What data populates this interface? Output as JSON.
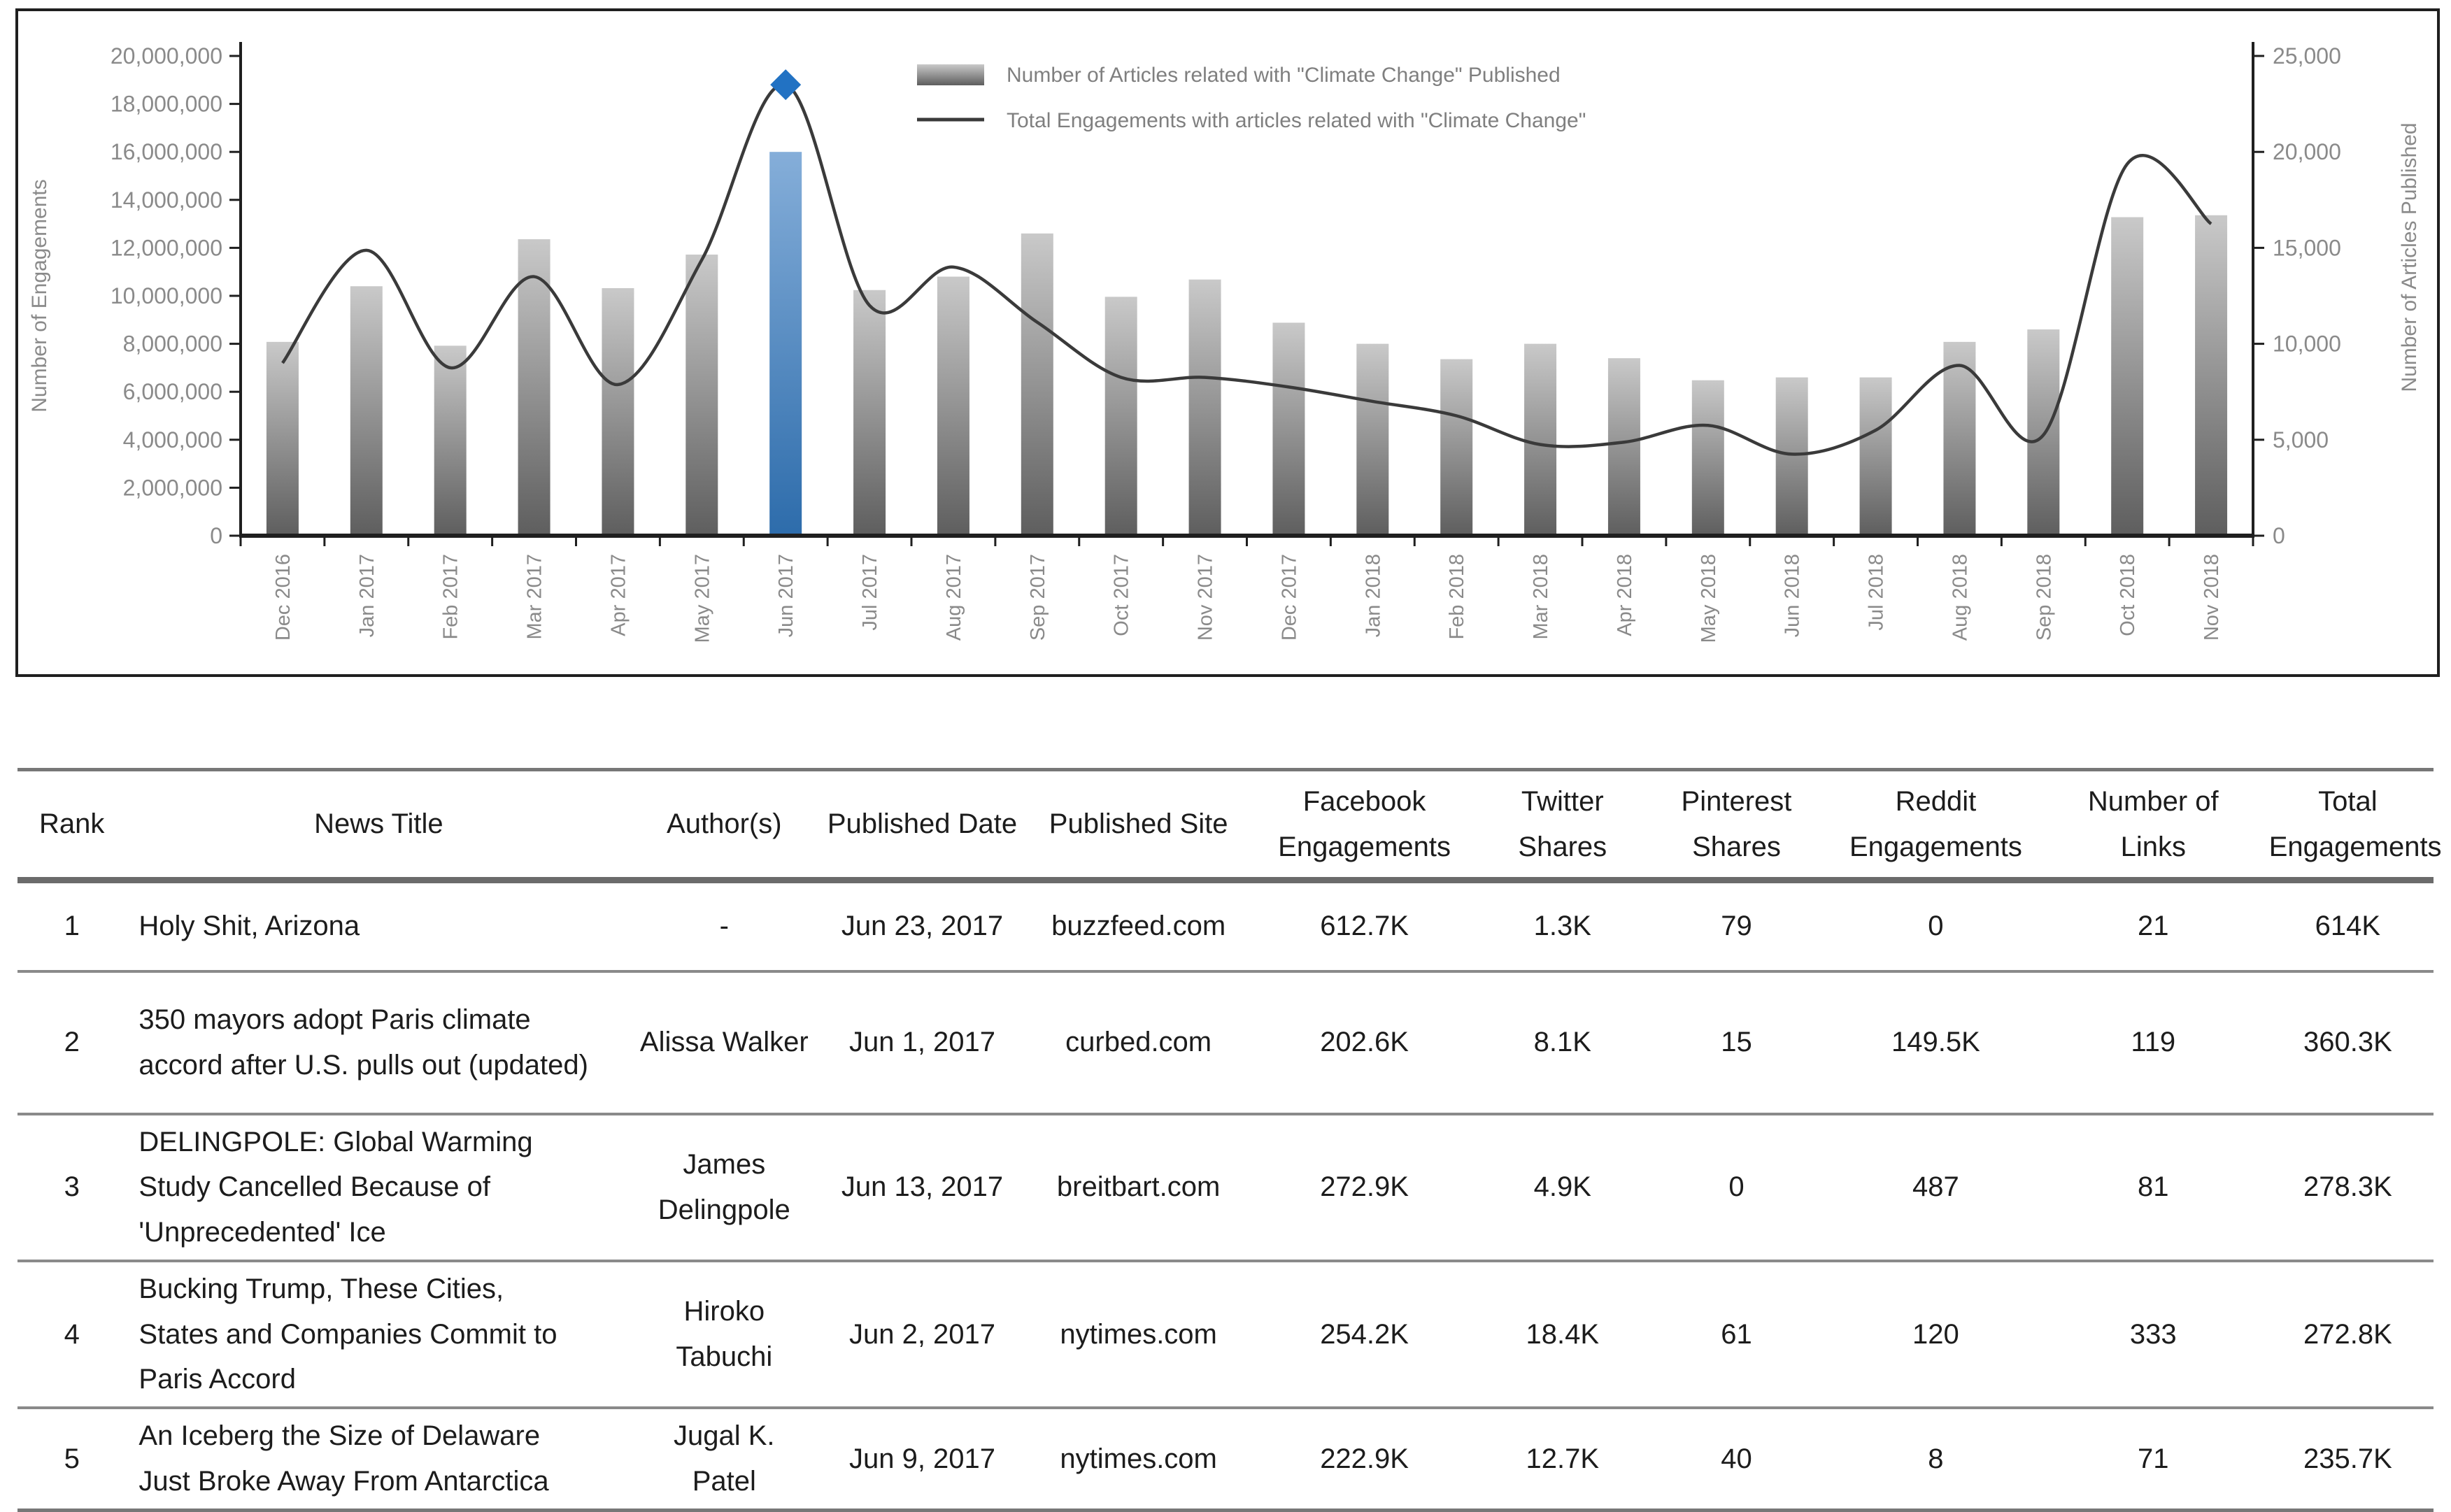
{
  "chart_data": {
    "type": "bar+line",
    "title": "",
    "categories": [
      "Dec 2016",
      "Jan 2017",
      "Feb 2017",
      "Mar 2017",
      "Apr 2017",
      "May 2017",
      "Jun 2017",
      "Jul 2017",
      "Aug 2017",
      "Sep 2017",
      "Oct 2017",
      "Nov 2017",
      "Dec 2017",
      "Jan 2018",
      "Feb 2018",
      "Mar 2018",
      "Apr 2018",
      "May 2018",
      "Jun 2018",
      "Jul 2018",
      "Aug 2018",
      "Sep 2018",
      "Oct 2018",
      "Nov 2018"
    ],
    "series": [
      {
        "name": "Number of Articles related with \"Climate Change\" Published",
        "type": "bar",
        "axis": "right",
        "values": [
          10100,
          13000,
          9900,
          15450,
          12900,
          14650,
          20000,
          12800,
          13500,
          15750,
          12450,
          13350,
          11100,
          10000,
          9200,
          10000,
          9250,
          8100,
          8250,
          8250,
          10100,
          10750,
          16600,
          16700
        ]
      },
      {
        "name": "Total Engagements with articles related with \"Climate Change\"",
        "type": "line",
        "axis": "left",
        "values": [
          7200000,
          11900000,
          7000000,
          10800000,
          6300000,
          11500000,
          18800000,
          9600000,
          11200000,
          8900000,
          6600000,
          6600000,
          6200000,
          5600000,
          5000000,
          3800000,
          3900000,
          4600000,
          3400000,
          4400000,
          7100000,
          4200000,
          15500000,
          13000000
        ]
      }
    ],
    "left_axis": {
      "title": "Number of Engagements",
      "min": 0,
      "max": 20000000,
      "step": 2000000
    },
    "right_axis": {
      "title": "Number of Articles  Published",
      "min": 0,
      "max": 25000,
      "step": 5000
    },
    "highlight": {
      "category": "Jun 2017",
      "index": 6,
      "marker_value": 18800000
    },
    "legend_position": "top-center",
    "grid": false,
    "colors": {
      "bar_top": "#c9c9c9",
      "bar_bottom": "#5e5e5e",
      "highlight_bar_top": "#85aed9",
      "highlight_bar_bottom": "#2d6cab",
      "line": "#3a3a3a",
      "marker": "#2272c3",
      "axis": "#1f1f1f",
      "tick_text": "#8a8a8a",
      "legend_text": "#7f7f7f"
    }
  },
  "table": {
    "columns": [
      {
        "key": "rank",
        "label": "Rank"
      },
      {
        "key": "title",
        "label": "News Title"
      },
      {
        "key": "authors",
        "label": "Author(s)"
      },
      {
        "key": "date",
        "label": "Published Date"
      },
      {
        "key": "site",
        "label": "Published Site"
      },
      {
        "key": "facebook",
        "label": "Facebook Engagements"
      },
      {
        "key": "twitter",
        "label": "Twitter Shares"
      },
      {
        "key": "pinterest",
        "label": "Pinterest Shares"
      },
      {
        "key": "reddit",
        "label": "Reddit Engagements"
      },
      {
        "key": "links",
        "label": "Number of Links"
      },
      {
        "key": "total",
        "label": "Total Engagements"
      }
    ],
    "rows": [
      {
        "rank": "1",
        "title": "Holy Shit, Arizona",
        "authors": "-",
        "date": "Jun 23, 2017",
        "site": "buzzfeed.com",
        "facebook": "612.7K",
        "twitter": "1.3K",
        "pinterest": "79",
        "reddit": "0",
        "links": "21",
        "total": "614K"
      },
      {
        "rank": "2",
        "title": "350 mayors adopt Paris climate accord after U.S. pulls out (updated)",
        "authors": "Alissa Walker",
        "date": "Jun 1, 2017",
        "site": "curbed.com",
        "facebook": "202.6K",
        "twitter": "8.1K",
        "pinterest": "15",
        "reddit": "149.5K",
        "links": "119",
        "total": "360.3K"
      },
      {
        "rank": "3",
        "title": "DELINGPOLE: Global Warming Study Cancelled Because of 'Unprecedented' Ice",
        "authors": "James Delingpole",
        "date": "Jun 13, 2017",
        "site": "breitbart.com",
        "facebook": "272.9K",
        "twitter": "4.9K",
        "pinterest": "0",
        "reddit": "487",
        "links": "81",
        "total": "278.3K"
      },
      {
        "rank": "4",
        "title": "Bucking Trump, These Cities, States and Companies Commit to Paris Accord",
        "authors": "Hiroko Tabuchi",
        "date": "Jun 2, 2017",
        "site": "nytimes.com",
        "facebook": "254.2K",
        "twitter": "18.4K",
        "pinterest": "61",
        "reddit": "120",
        "links": "333",
        "total": "272.8K"
      },
      {
        "rank": "5",
        "title": "An Iceberg the Size of Delaware Just Broke Away From Antarctica",
        "authors": "Jugal K. Patel",
        "date": "Jun 9, 2017",
        "site": "nytimes.com",
        "facebook": "222.9K",
        "twitter": "12.7K",
        "pinterest": "40",
        "reddit": "8",
        "links": "71",
        "total": "235.7K"
      }
    ]
  }
}
